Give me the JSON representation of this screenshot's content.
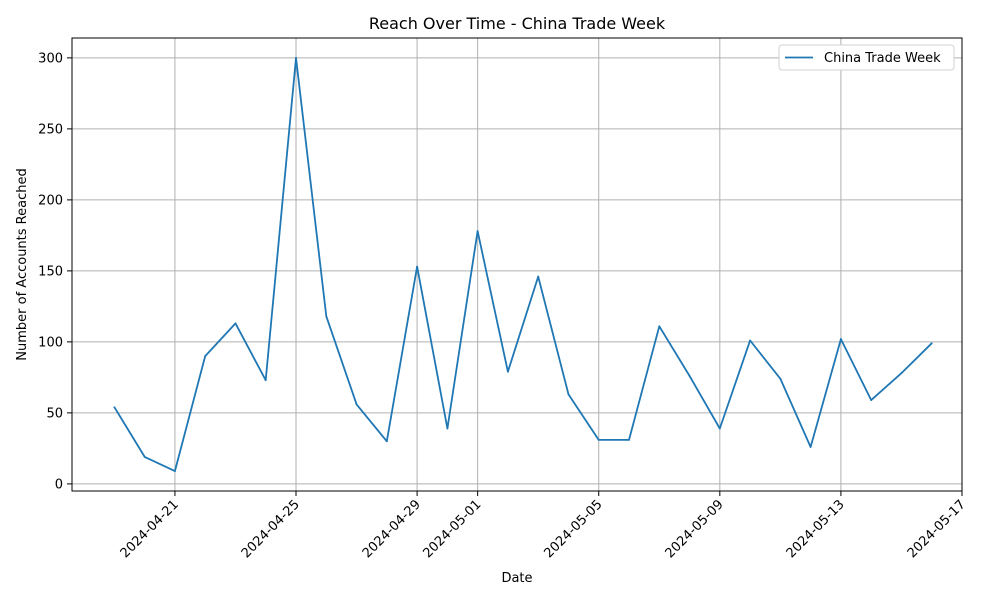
{
  "chart_data": {
    "type": "line",
    "title": "Reach Over Time - China Trade Week",
    "xlabel": "Date",
    "ylabel": "Number of Accounts Reached",
    "grid": true,
    "legend_position": "top-right",
    "x_ticks": [
      "2024-04-21",
      "2024-04-25",
      "2024-04-29",
      "2024-05-01",
      "2024-05-05",
      "2024-05-09",
      "2024-05-13",
      "2024-05-17"
    ],
    "y_ticks": [
      0,
      50,
      100,
      150,
      200,
      250,
      300
    ],
    "ylim": [
      -5,
      314
    ],
    "xlim": [
      "2024-04-17",
      "2024-05-17"
    ],
    "series": [
      {
        "name": "China Trade Week",
        "color": "#1f77b4",
        "x": [
          "2024-04-19",
          "2024-04-20",
          "2024-04-21",
          "2024-04-22",
          "2024-04-23",
          "2024-04-24",
          "2024-04-25",
          "2024-04-26",
          "2024-04-27",
          "2024-04-28",
          "2024-04-29",
          "2024-04-30",
          "2024-05-01",
          "2024-05-02",
          "2024-05-03",
          "2024-05-04",
          "2024-05-05",
          "2024-05-06",
          "2024-05-07",
          "2024-05-08",
          "2024-05-09",
          "2024-05-10",
          "2024-05-11",
          "2024-05-12",
          "2024-05-13",
          "2024-05-14",
          "2024-05-15",
          "2024-05-16"
        ],
        "values": [
          54,
          19,
          9,
          90,
          113,
          73,
          300,
          118,
          56,
          30,
          153,
          39,
          178,
          79,
          146,
          63,
          31,
          31,
          111,
          76,
          39,
          101,
          74,
          26,
          102,
          59,
          78,
          99
        ]
      }
    ]
  }
}
